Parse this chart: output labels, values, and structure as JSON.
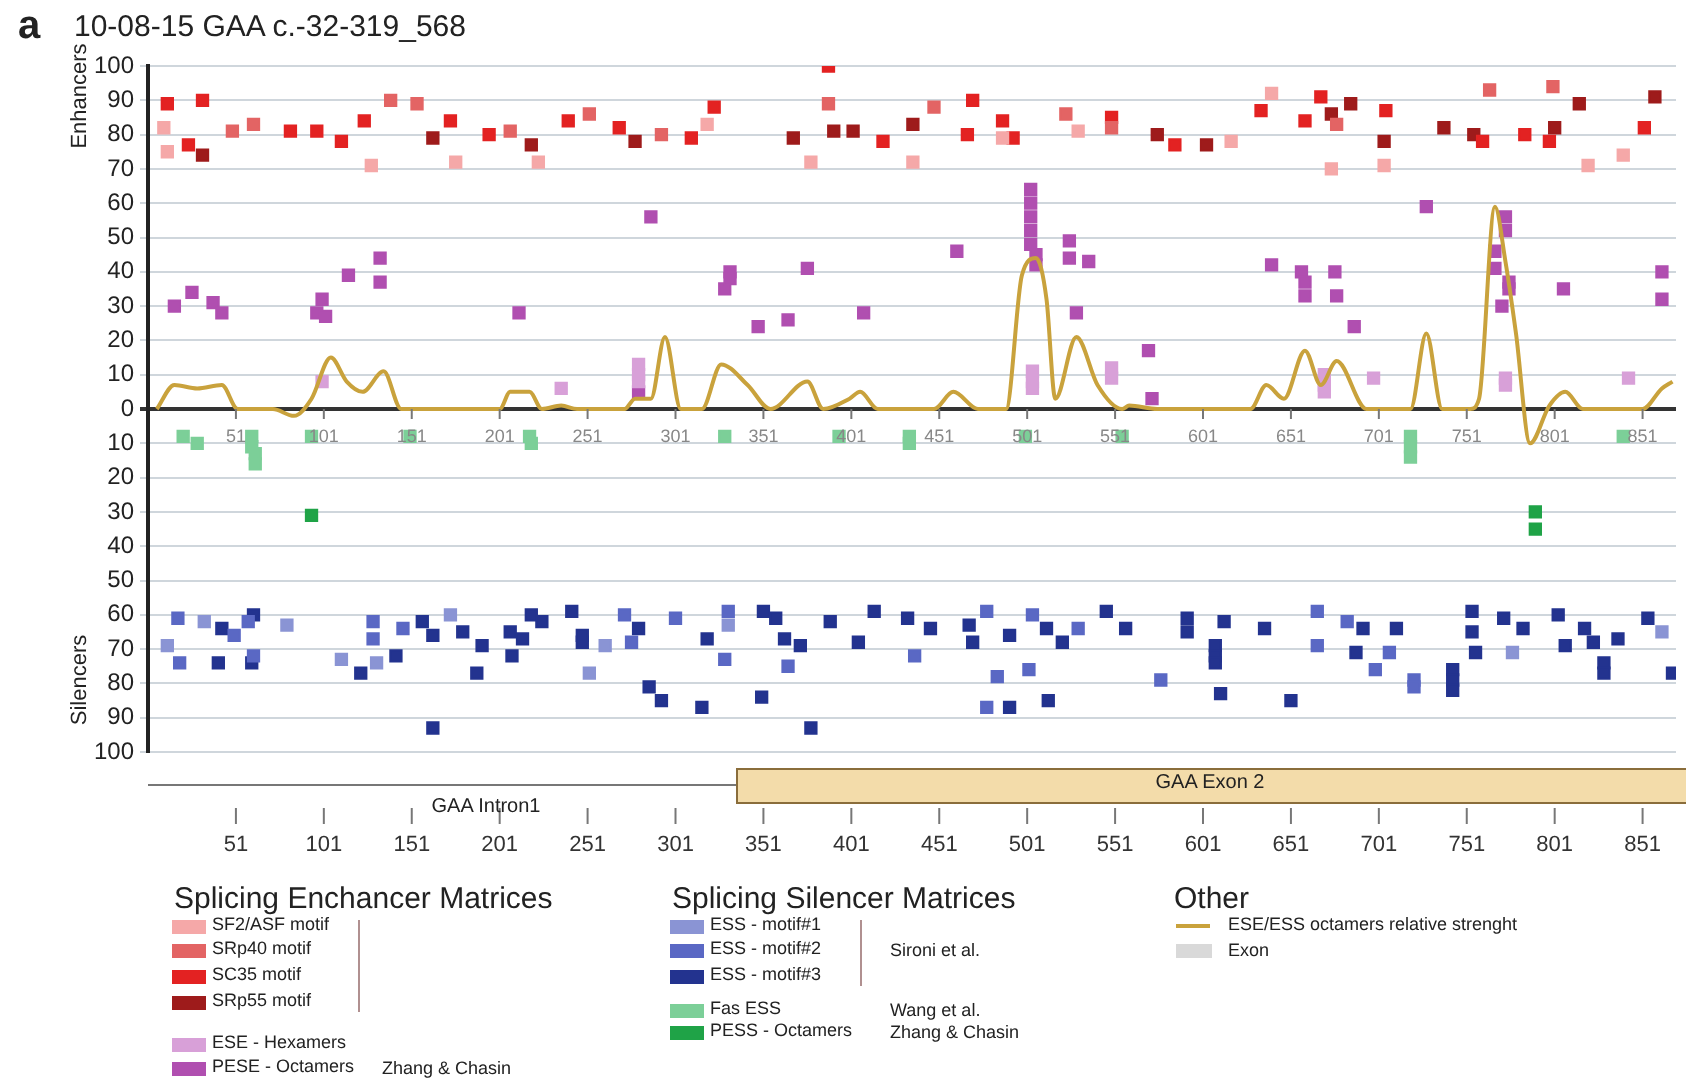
{
  "chart_data": {
    "type": "scatter",
    "title": "10-08-15 GAA c.-32-319_568",
    "ylabel": "Enhancers",
    "annotations": [
      "a",
      "Silencers",
      "GAA Intron1",
      "GAA Exon 2",
      "Splicing Enchancer Matrices",
      "Splicing Silencer Matrices",
      "Other",
      "Sironi et al.",
      "Wang et al.",
      "Zhang & Chasin",
      "Zhang & Chasin",
      "Exon"
    ],
    "xlim": [
      1,
      870
    ],
    "xticks": [
      51,
      101,
      151,
      201,
      251,
      301,
      351,
      401,
      451,
      501,
      551,
      601,
      651,
      701,
      751,
      801,
      851
    ],
    "x2lim": [
      1,
      870
    ],
    "x2ticks": [
      51,
      101,
      151,
      201,
      251,
      301,
      351,
      401,
      451,
      501,
      551,
      601,
      651,
      701,
      751,
      801,
      851
    ],
    "ylim": [
      -100,
      100
    ],
    "yticks": [
      100,
      90,
      80,
      70,
      60,
      50,
      40,
      30,
      20,
      10,
      0,
      {
        "value": -10,
        "label": "10"
      },
      {
        "value": -20,
        "label": "20"
      },
      {
        "value": -30,
        "label": "30"
      },
      {
        "value": -40,
        "label": "40"
      },
      {
        "value": -50,
        "label": "50"
      },
      {
        "value": -60,
        "label": "60"
      },
      {
        "value": -70,
        "label": "70"
      },
      {
        "value": -80,
        "label": "80"
      },
      {
        "value": -90,
        "label": "90"
      },
      {
        "value": -100,
        "label": "100"
      }
    ],
    "grid": "y",
    "legend": "bottom",
    "marker": "square",
    "series": [
      {
        "name": "SF2/ASF motif",
        "color": "#f5a8a8",
        "x": [
          10,
          12,
          128,
          176,
          223,
          319,
          378,
          436,
          487,
          530,
          617,
          640,
          674,
          704,
          820,
          840
        ],
        "values": [
          82,
          75,
          71,
          72,
          72,
          83,
          72,
          72,
          79,
          81,
          78,
          92,
          70,
          71,
          71,
          74
        ]
      },
      {
        "name": "SRp40 motif",
        "color": "#e36464",
        "x": [
          49,
          61,
          139,
          154,
          207,
          252,
          293,
          388,
          448,
          523,
          549,
          677,
          764,
          800
        ],
        "values": [
          81,
          83,
          90,
          89,
          81,
          86,
          80,
          89,
          88,
          86,
          82,
          83,
          93,
          94
        ]
      },
      {
        "name": "SC35 motif",
        "color": "#e32222",
        "x": [
          12,
          32,
          24,
          82,
          97,
          111,
          124,
          173,
          195,
          240,
          269,
          310,
          323,
          388,
          470,
          419,
          467,
          493,
          487,
          549,
          585,
          634,
          668,
          659,
          705,
          760,
          784,
          798,
          852
        ],
        "values": [
          89,
          90,
          77,
          81,
          81,
          78,
          84,
          84,
          80,
          84,
          82,
          79,
          88,
          100,
          90,
          78,
          80,
          79,
          84,
          85,
          77,
          87,
          91,
          84,
          87,
          78,
          80,
          78,
          82
        ]
      },
      {
        "name": "SRp55 motif",
        "color": "#9e1b1b",
        "x": [
          32,
          163,
          219,
          278,
          368,
          391,
          436,
          402,
          575,
          603,
          685,
          674,
          704,
          738,
          755,
          815,
          801,
          858
        ],
        "values": [
          74,
          79,
          77,
          78,
          79,
          81,
          83,
          81,
          80,
          77,
          89,
          86,
          78,
          82,
          80,
          89,
          82,
          91
        ]
      },
      {
        "name": "ESE - Hexamers",
        "color": "#d8a0d8",
        "x": [
          100,
          236,
          280,
          280,
          280,
          504,
          504,
          504,
          549,
          549,
          670,
          670,
          670,
          698,
          773,
          773,
          843
        ],
        "values": [
          8,
          6,
          13,
          10,
          8,
          11,
          8,
          6,
          12,
          9,
          10,
          7,
          5,
          9,
          9,
          7,
          9
        ]
      },
      {
        "name": "PESE - Octamers",
        "color": "#b04fb0",
        "x": [
          16,
          26,
          38,
          43,
          100,
          97,
          102,
          115,
          133,
          133,
          212,
          287,
          280,
          329,
          332,
          332,
          348,
          365,
          376,
          408,
          461,
          503,
          503,
          503,
          503,
          503,
          506,
          506,
          525,
          525,
          536,
          529,
          570,
          572,
          640,
          657,
          659,
          676,
          659,
          677,
          687,
          728,
          773,
          773,
          767,
          767,
          775,
          775,
          771,
          806,
          862,
          862
        ],
        "values": [
          30,
          34,
          31,
          28,
          32,
          28,
          27,
          39,
          44,
          37,
          28,
          56,
          5,
          35,
          40,
          38,
          24,
          26,
          41,
          28,
          46,
          64,
          60,
          56,
          52,
          48,
          45,
          42,
          49,
          44,
          43,
          28,
          17,
          3,
          42,
          40,
          37,
          40,
          33,
          33,
          24,
          59,
          56,
          52,
          46,
          41,
          37,
          35,
          30,
          35,
          40,
          32
        ]
      },
      {
        "name": "ESS - motif#1",
        "color": "#8a94d4",
        "x": [
          12,
          33,
          80,
          111,
          131,
          173,
          261,
          252,
          331,
          777,
          862
        ],
        "values": [
          -69,
          -62,
          -63,
          -73,
          -74,
          -60,
          -69,
          -77,
          -63,
          -71,
          -65
        ]
      },
      {
        "name": "ESS - motif#2",
        "color": "#5a68c4",
        "x": [
          19,
          18,
          50,
          58,
          61,
          129,
          129,
          146,
          272,
          276,
          301,
          331,
          329,
          365,
          437,
          484,
          478,
          478,
          504,
          502,
          530,
          577,
          666,
          666,
          683,
          707,
          699,
          721,
          721
        ],
        "values": [
          -74,
          -61,
          -66,
          -62,
          -72,
          -62,
          -67,
          -64,
          -60,
          -68,
          -61,
          -59,
          -73,
          -75,
          -72,
          -78,
          -59,
          -87,
          -60,
          -76,
          -64,
          -79,
          -59,
          -69,
          -62,
          -71,
          -76,
          -79,
          -81
        ]
      },
      {
        "name": "ESS - motif#3",
        "color": "#23338f",
        "x": [
          43,
          41,
          60,
          61,
          122,
          142,
          157,
          163,
          180,
          163,
          188,
          191,
          207,
          208,
          214,
          219,
          225,
          242,
          248,
          248,
          280,
          286,
          293,
          316,
          319,
          350,
          351,
          358,
          363,
          372,
          378,
          389,
          414,
          405,
          433,
          446,
          468,
          470,
          491,
          491,
          512,
          521,
          513,
          546,
          557,
          592,
          592,
          608,
          608,
          608,
          611,
          613,
          636,
          651,
          692,
          711,
          688,
          743,
          743,
          743,
          754,
          754,
          756,
          772,
          783,
          803,
          807,
          818,
          823,
          837,
          829,
          829,
          854,
          868
        ],
        "values": [
          -64,
          -74,
          -74,
          -60,
          -77,
          -72,
          -62,
          -66,
          -65,
          -93,
          -77,
          -69,
          -65,
          -72,
          -67,
          -60,
          -62,
          -59,
          -68,
          -66,
          -64,
          -81,
          -85,
          -87,
          -67,
          -84,
          -59,
          -61,
          -67,
          -69,
          -93,
          -62,
          -59,
          -68,
          -61,
          -64,
          -63,
          -68,
          -66,
          -87,
          -64,
          -68,
          -85,
          -59,
          -64,
          -61,
          -65,
          -69,
          -72,
          -74,
          -83,
          -62,
          -64,
          -85,
          -64,
          -64,
          -71,
          -76,
          -79,
          -82,
          -59,
          -65,
          -71,
          -61,
          -64,
          -60,
          -69,
          -64,
          -68,
          -67,
          -74,
          -77,
          -61,
          -77
        ]
      },
      {
        "name": "Fas ESS",
        "color": "#7ccf98",
        "x": [
          21,
          29,
          60,
          60,
          62,
          62,
          94,
          150,
          218,
          219,
          329,
          394,
          434,
          434,
          500,
          555,
          719,
          719,
          719,
          840
        ],
        "values": [
          -8,
          -10,
          -8,
          -11,
          -13,
          -16,
          -8,
          -8,
          -8,
          -10,
          -8,
          -8,
          -8,
          -10,
          -8,
          -8,
          -8,
          -11,
          -14,
          -8
        ]
      },
      {
        "name": "PESS - Octamers",
        "color": "#1fa347",
        "x": [
          94,
          790,
          790
        ],
        "values": [
          -31,
          -30,
          -35
        ]
      },
      {
        "name": "ESE/ESS octamers relative strenght",
        "type": "line",
        "marker": "none",
        "line_style": "solid",
        "color": "#c9a23c",
        "x": [
          6,
          16,
          29,
          43,
          52,
          72,
          84,
          94,
          105,
          114,
          123,
          135,
          145,
          201,
          207,
          218,
          225,
          236,
          245,
          272,
          278,
          287,
          295,
          304,
          316,
          327,
          342,
          355,
          376,
          385,
          400,
          406,
          416,
          448,
          459,
          473,
          489,
          498,
          506,
          512,
          517,
          529,
          541,
          555,
          559,
          575,
          628,
          637,
          647,
          659,
          668,
          677,
          694,
          719,
          728,
          737,
          753,
          758,
          767,
          773,
          779,
          787,
          798,
          807,
          817,
          851,
          862,
          868
        ],
        "values": [
          0,
          7,
          6,
          7,
          0,
          0,
          -2,
          3,
          15,
          8,
          5,
          11,
          0,
          0,
          5,
          5,
          0,
          1,
          0,
          0,
          3,
          3,
          21,
          0,
          0,
          13,
          7,
          0,
          8,
          0,
          3,
          5,
          0,
          0,
          5,
          0,
          0,
          39,
          44,
          32,
          3,
          21,
          7,
          0,
          1,
          0,
          0,
          7,
          3,
          17,
          7,
          14,
          0,
          0,
          22,
          0,
          0,
          3,
          59,
          43,
          22,
          -10,
          1,
          5,
          0,
          0,
          6,
          8
        ]
      }
    ]
  }
}
